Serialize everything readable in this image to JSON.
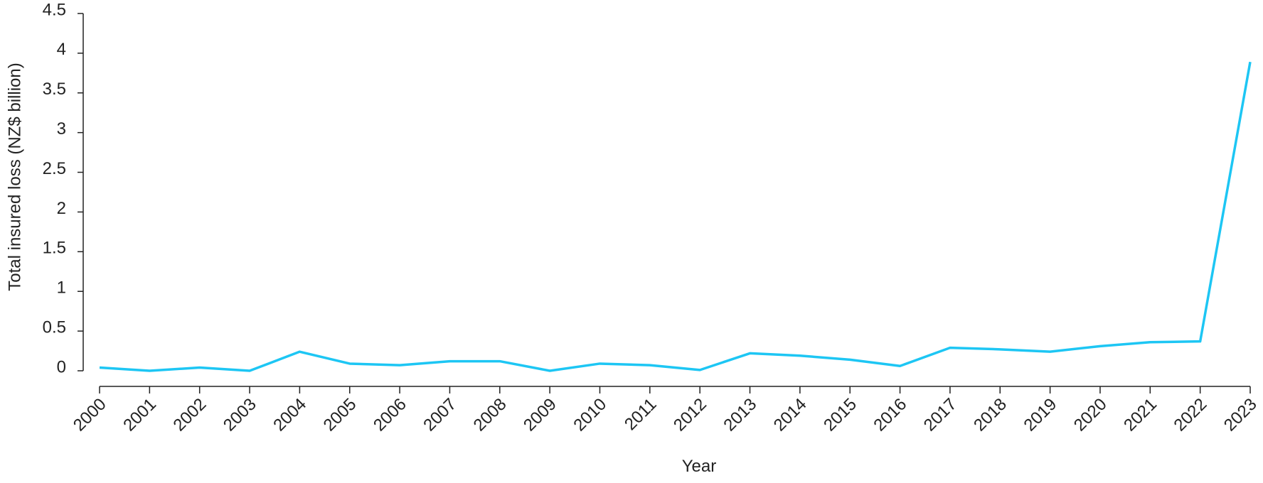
{
  "chart_data": {
    "type": "line",
    "x_label": "Year",
    "y_label": "Total insured loss (NZ$ billion)",
    "categories": [
      "2000",
      "2001",
      "2002",
      "2003",
      "2004",
      "2005",
      "2006",
      "2007",
      "2008",
      "2009",
      "2010",
      "2011",
      "2012",
      "2013",
      "2014",
      "2015",
      "2016",
      "2017",
      "2018",
      "2019",
      "2020",
      "2021",
      "2022",
      "2023"
    ],
    "series": [
      {
        "color": "#1dc6f4",
        "values": [
          0.04,
          0.0,
          0.04,
          0.0,
          0.24,
          0.09,
          0.07,
          0.12,
          0.12,
          0.0,
          0.09,
          0.07,
          0.01,
          0.22,
          0.19,
          0.14,
          0.06,
          0.29,
          0.27,
          0.24,
          0.31,
          0.36,
          0.37,
          3.89
        ]
      }
    ],
    "ylim": [
      0,
      4.5
    ],
    "yticks": [
      0,
      0.5,
      1,
      1.5,
      2,
      2.5,
      3,
      3.5,
      4,
      4.5
    ],
    "grid": false
  }
}
